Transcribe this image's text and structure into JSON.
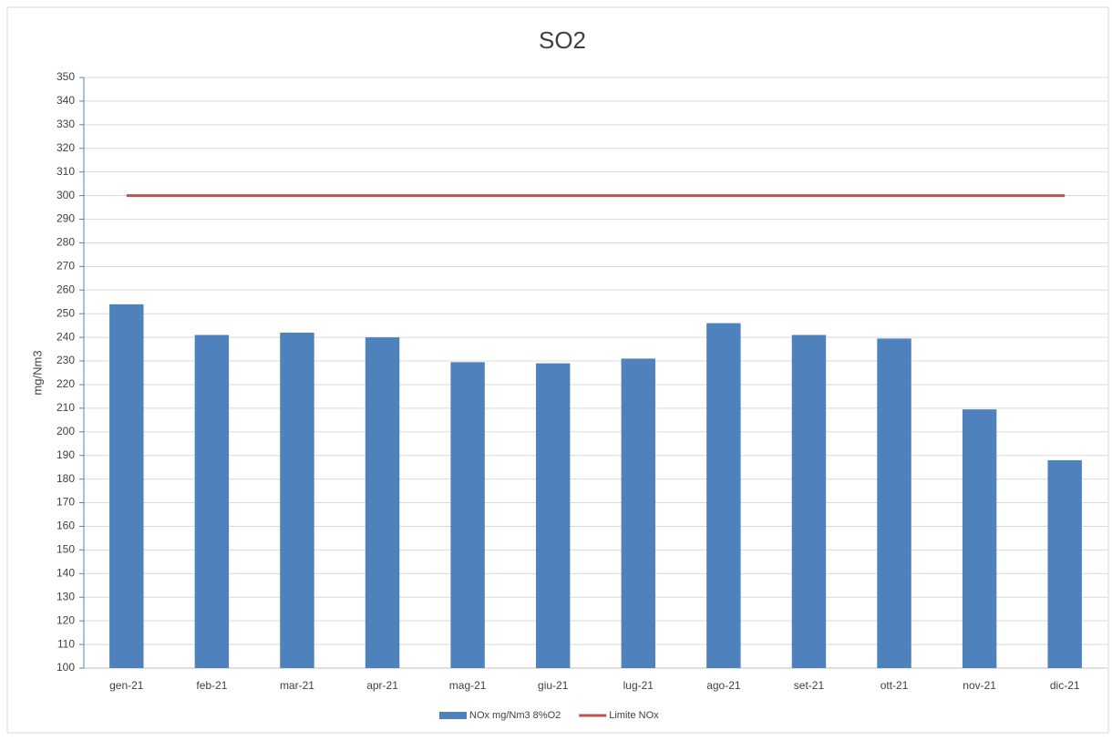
{
  "chart_data": {
    "type": "bar",
    "title": "SO2",
    "y_label": "mg/Nm3",
    "categories": [
      "gen-21",
      "feb-21",
      "mar-21",
      "apr-21",
      "mag-21",
      "giu-21",
      "lug-21",
      "ago-21",
      "set-21",
      "ott-21",
      "nov-21",
      "dic-21"
    ],
    "series": [
      {
        "name": "NOx  mg/Nm3 8%O2",
        "type": "bar",
        "color": "#4f81bd",
        "values": [
          254,
          241,
          242,
          240,
          229.5,
          229,
          231,
          246,
          241,
          239.5,
          209.5,
          188
        ]
      },
      {
        "name": "Limite NOx",
        "type": "line",
        "color": "#c0504d",
        "values": [
          300,
          300,
          300,
          300,
          300,
          300,
          300,
          300,
          300,
          300,
          300,
          300
        ]
      }
    ],
    "ylim": [
      100,
      350
    ],
    "yticks": [
      100,
      110,
      120,
      130,
      140,
      150,
      160,
      170,
      180,
      190,
      200,
      210,
      220,
      230,
      240,
      250,
      260,
      270,
      280,
      290,
      300,
      310,
      320,
      330,
      340,
      350
    ],
    "grid": true,
    "legend": "bottom"
  }
}
